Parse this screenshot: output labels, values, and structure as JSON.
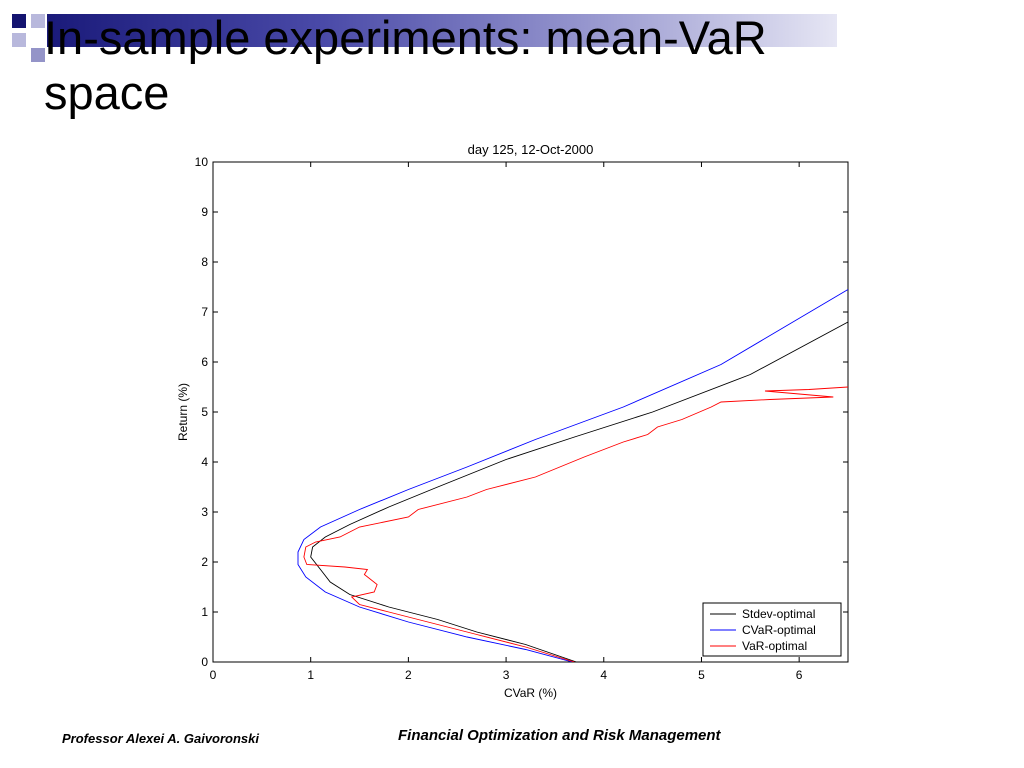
{
  "slide": {
    "title": "In-sample experiments: mean-VaR\nspace",
    "footer_left": "Professor Alexei A. Gaivoronski",
    "footer_center": "Financial Optimization and Risk Management"
  },
  "chart_data": {
    "type": "line",
    "title": "day 125, 12-Oct-2000",
    "xlabel": "CVaR (%)",
    "ylabel": "Return (%)",
    "xlim": [
      0,
      6.5
    ],
    "ylim": [
      0,
      10
    ],
    "xticks": [
      0,
      1,
      2,
      3,
      4,
      5,
      6
    ],
    "yticks": [
      0,
      1,
      2,
      3,
      4,
      5,
      6,
      7,
      8,
      9,
      10
    ],
    "grid": false,
    "legend_position": "bottom-right",
    "series": [
      {
        "name": "Stdev-optimal",
        "color": "#000000",
        "points": [
          [
            3.72,
            0
          ],
          [
            3.2,
            0.35
          ],
          [
            2.7,
            0.6
          ],
          [
            2.3,
            0.85
          ],
          [
            1.8,
            1.1
          ],
          [
            1.4,
            1.35
          ],
          [
            1.2,
            1.6
          ],
          [
            1.1,
            1.85
          ],
          [
            1.0,
            2.1
          ],
          [
            1.02,
            2.3
          ],
          [
            1.15,
            2.5
          ],
          [
            1.4,
            2.75
          ],
          [
            1.8,
            3.1
          ],
          [
            2.3,
            3.5
          ],
          [
            3.0,
            4.05
          ],
          [
            3.7,
            4.5
          ],
          [
            4.5,
            5.0
          ],
          [
            5.5,
            5.75
          ],
          [
            6.5,
            6.8
          ]
        ]
      },
      {
        "name": "CVaR-optimal",
        "color": "#0000ff",
        "points": [
          [
            3.68,
            0
          ],
          [
            3.2,
            0.25
          ],
          [
            2.6,
            0.5
          ],
          [
            2.0,
            0.8
          ],
          [
            1.5,
            1.1
          ],
          [
            1.15,
            1.4
          ],
          [
            0.95,
            1.7
          ],
          [
            0.87,
            1.95
          ],
          [
            0.87,
            2.2
          ],
          [
            0.93,
            2.45
          ],
          [
            1.1,
            2.7
          ],
          [
            1.5,
            3.05
          ],
          [
            2.0,
            3.45
          ],
          [
            2.6,
            3.9
          ],
          [
            3.3,
            4.45
          ],
          [
            4.2,
            5.1
          ],
          [
            5.2,
            5.95
          ],
          [
            6.5,
            7.45
          ]
        ]
      },
      {
        "name": "VaR-optimal",
        "color": "#ff0000",
        "points": [
          [
            3.7,
            0
          ],
          [
            3.2,
            0.3
          ],
          [
            2.7,
            0.55
          ],
          [
            2.2,
            0.8
          ],
          [
            1.8,
            1.0
          ],
          [
            1.5,
            1.15
          ],
          [
            1.42,
            1.3
          ],
          [
            1.65,
            1.4
          ],
          [
            1.68,
            1.55
          ],
          [
            1.55,
            1.75
          ],
          [
            1.58,
            1.85
          ],
          [
            1.35,
            1.9
          ],
          [
            0.96,
            1.95
          ],
          [
            0.93,
            2.1
          ],
          [
            0.95,
            2.3
          ],
          [
            1.05,
            2.4
          ],
          [
            1.3,
            2.5
          ],
          [
            1.5,
            2.7
          ],
          [
            2.0,
            2.9
          ],
          [
            2.1,
            3.05
          ],
          [
            2.6,
            3.3
          ],
          [
            2.8,
            3.45
          ],
          [
            3.3,
            3.7
          ],
          [
            3.8,
            4.1
          ],
          [
            4.2,
            4.4
          ],
          [
            4.45,
            4.55
          ],
          [
            4.55,
            4.7
          ],
          [
            4.8,
            4.85
          ],
          [
            5.1,
            5.1
          ],
          [
            5.2,
            5.2
          ],
          [
            5.7,
            5.25
          ],
          [
            6.35,
            5.3
          ],
          [
            5.65,
            5.42
          ],
          [
            6.1,
            5.45
          ],
          [
            6.5,
            5.5
          ]
        ]
      }
    ]
  }
}
